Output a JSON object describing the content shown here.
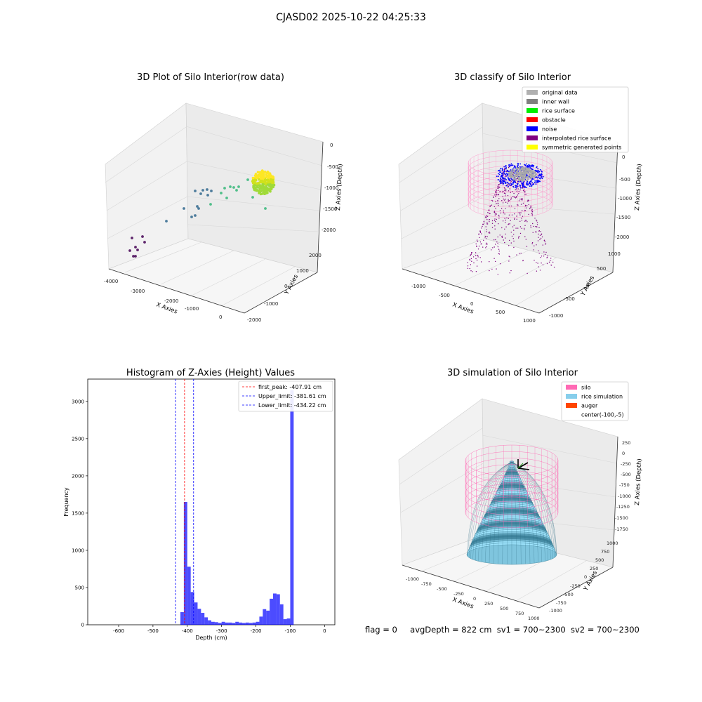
{
  "figure": {
    "title": "CJASD02 2025-10-22 04:25:33",
    "footer": {
      "flag": "flag = 0",
      "avg_depth": "avgDepth = 822 cm",
      "sv1": "sv1 = 700~2300",
      "sv2": "sv2 = 700~2300"
    }
  },
  "chart_data": [
    {
      "type": "scatter",
      "title": "3D Plot of Silo Interior(row data)",
      "xlabel": "X Axies",
      "ylabel": "Y Axies",
      "zlabel": "Z Axies (Depth)",
      "x_ticks": [
        "-4000",
        "-3000",
        "-2000",
        "-1000",
        "0"
      ],
      "y_ticks": [
        "-2000",
        "-1000",
        "0",
        "1000",
        "2000"
      ],
      "z_ticks": [
        "0",
        "-500",
        "-1000",
        "-1500",
        "-2000"
      ],
      "projection": "3d",
      "colors": [
        "#440154",
        "#31688e",
        "#35b779",
        "#fde725"
      ]
    },
    {
      "type": "scatter",
      "title": "3D classify of Silo Interior",
      "xlabel": "X Axies",
      "ylabel": "Y Axies",
      "zlabel": "Z Axies (Depth)",
      "x_ticks": [
        "-1000",
        "-500",
        "0",
        "500",
        "1000"
      ],
      "y_ticks": [
        "-1000",
        "-500",
        "0",
        "500",
        "1000"
      ],
      "z_ticks": [
        "0",
        "-500",
        "-1000",
        "-1500",
        "-2000"
      ],
      "projection": "3d",
      "legend_placement": "top-right",
      "legend": [
        {
          "label": "original data",
          "color": "#b0b0b0"
        },
        {
          "label": "inner wall",
          "color": "#808080"
        },
        {
          "label": "rice surface",
          "color": "#00ee00"
        },
        {
          "label": "obstacle",
          "color": "#ff0000"
        },
        {
          "label": "noise",
          "color": "#0000ff"
        },
        {
          "label": "interpolated rice surface",
          "color": "#800080"
        },
        {
          "label": "symmetric generated points",
          "color": "#ffff00"
        }
      ]
    },
    {
      "type": "bar",
      "title": "Histogram of Z-Axies (Height) Values",
      "xlabel": "Depth (cm)",
      "ylabel": "Frequency",
      "xlim": [
        -690,
        30
      ],
      "ylim": [
        0,
        3300
      ],
      "x_ticks": [
        -600,
        -500,
        -400,
        -300,
        -200,
        -100,
        0
      ],
      "y_ticks": [
        0,
        500,
        1000,
        1500,
        2000,
        2500,
        3000
      ],
      "bar_color": "#0000ff",
      "bins": {
        "left": [
          -420,
          -410,
          -400,
          -390,
          -380,
          -370,
          -360,
          -350,
          -340,
          -330,
          -320,
          -310,
          -300,
          -290,
          -280,
          -270,
          -260,
          -250,
          -240,
          -230,
          -220,
          -210,
          -200,
          -190,
          -180,
          -170,
          -160,
          -150,
          -140,
          -130,
          -120,
          -110,
          -100,
          -90,
          -80,
          -70,
          -60,
          -50,
          -40,
          -30,
          -20,
          -10
        ],
        "counts": [
          170,
          1650,
          780,
          440,
          300,
          215,
          160,
          100,
          60,
          40,
          35,
          25,
          40,
          30,
          30,
          25,
          40,
          30,
          25,
          30,
          25,
          30,
          40,
          110,
          210,
          190,
          350,
          420,
          410,
          275,
          75,
          85,
          3150,
          0,
          0,
          0,
          0,
          0,
          0,
          0,
          0,
          0
        ],
        "width": 10
      },
      "vlines": [
        {
          "label": "first_peak: -407.91 cm",
          "x": -407.91,
          "color": "#ff0000"
        },
        {
          "label": "Upper_limit: -381.61 cm",
          "x": -381.61,
          "color": "#0000ff"
        },
        {
          "label": "Lower_limit: -434.22 cm",
          "x": -434.22,
          "color": "#0000ff"
        }
      ],
      "legend_placement": "top-right"
    },
    {
      "type": "area",
      "title": "3D simulation of Silo Interior",
      "xlabel": "X Axies",
      "ylabel": "Y Axies",
      "zlabel": "Z Axies (Depth)",
      "x_ticks": [
        "-1000",
        "-750",
        "-500",
        "-250",
        "0",
        "250",
        "500",
        "750",
        "1000"
      ],
      "y_ticks": [
        "-1000",
        "-750",
        "-500",
        "-250",
        "0",
        "250",
        "500",
        "750",
        "1000"
      ],
      "z_ticks": [
        "250",
        "0",
        "-250",
        "-500",
        "-750",
        "-1000",
        "-1250",
        "-1500",
        "-1750"
      ],
      "projection": "3d",
      "legend_placement": "top-right",
      "legend": [
        {
          "label": "silo",
          "color": "#ff69b4"
        },
        {
          "label": "rice simulation",
          "color": "#87ceeb"
        },
        {
          "label": "auger",
          "color": "#ff4500"
        },
        {
          "label": "center(-100,-5)",
          "color": ""
        }
      ]
    }
  ]
}
